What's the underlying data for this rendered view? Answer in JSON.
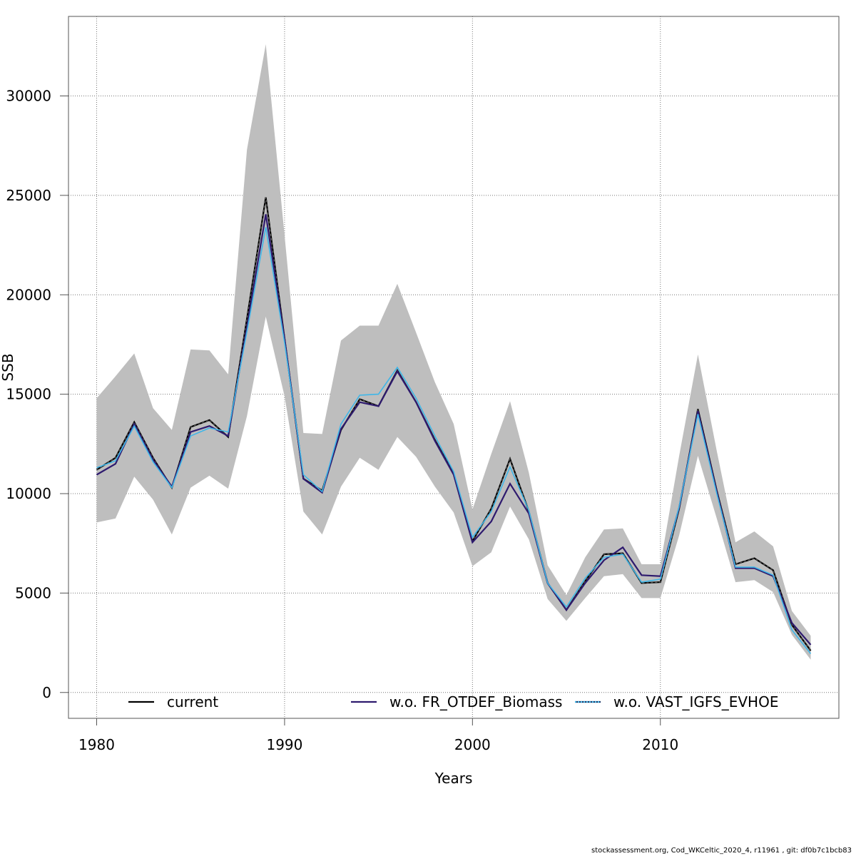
{
  "chart_data": {
    "type": "line",
    "xlabel": "Years",
    "ylabel": "SSB",
    "xlim": [
      1978.5,
      2019.5
    ],
    "ylim": [
      -1300,
      34000
    ],
    "xticks": [
      1980,
      1990,
      2000,
      2010
    ],
    "yticks": [
      0,
      5000,
      10000,
      15000,
      20000,
      25000,
      30000
    ],
    "grid": true,
    "legend_position": "bottom",
    "x": [
      1980,
      1981,
      1982,
      1983,
      1984,
      1985,
      1986,
      1987,
      1988,
      1989,
      1990,
      1991,
      1992,
      1993,
      1994,
      1995,
      1996,
      1997,
      1998,
      1999,
      2000,
      2001,
      2002,
      2003,
      2004,
      2005,
      2006,
      2007,
      2008,
      2009,
      2010,
      2011,
      2012,
      2013,
      2014,
      2015,
      2016,
      2017,
      2018
    ],
    "band": {
      "color": "#bebebe",
      "upper": [
        14800,
        15900,
        17050,
        14300,
        13200,
        17250,
        17200,
        16000,
        27300,
        32600,
        23000,
        13050,
        13000,
        17700,
        18450,
        18450,
        20550,
        18100,
        15600,
        13500,
        9200,
        12000,
        14650,
        11050,
        6400,
        4900,
        6800,
        8200,
        8250,
        6450,
        6450,
        11900,
        17000,
        12150,
        7550,
        8100,
        7350,
        4100,
        2850
      ],
      "lower": [
        8550,
        8750,
        10850,
        9700,
        7950,
        10300,
        10900,
        10250,
        13900,
        18900,
        14900,
        9100,
        7950,
        10350,
        11800,
        11200,
        12850,
        11850,
        10350,
        9050,
        6350,
        7050,
        9350,
        7700,
        4700,
        3600,
        4750,
        5850,
        5950,
        4750,
        4750,
        7900,
        11900,
        8750,
        5550,
        5650,
        5050,
        2900,
        1650
      ]
    },
    "series": [
      {
        "name": "current",
        "color": "#000000",
        "dash": "solid",
        "values": [
          11200,
          11800,
          13600,
          11800,
          10300,
          13350,
          13700,
          12850,
          18800,
          24900,
          17800,
          10750,
          10150,
          13200,
          14750,
          14400,
          16200,
          14600,
          12700,
          11000,
          7600,
          9250,
          11750,
          9100,
          5500,
          4150,
          5600,
          6950,
          7000,
          5500,
          5550,
          9250,
          14250,
          10150,
          6450,
          6750,
          6150,
          3400,
          2100
        ]
      },
      {
        "name": "w.o. FR_OTDEF_Biomass",
        "color": "#2e1a6e",
        "dash": "solid",
        "values": [
          10950,
          11500,
          13500,
          11700,
          10350,
          13100,
          13400,
          12900,
          18400,
          24050,
          17800,
          10750,
          10050,
          13250,
          14600,
          14400,
          16150,
          14600,
          12650,
          10950,
          7550,
          8600,
          10500,
          9000,
          5500,
          4150,
          5500,
          6650,
          7300,
          5900,
          5850,
          9300,
          14150,
          10100,
          6250,
          6250,
          5850,
          3500,
          2400
        ]
      },
      {
        "name": "w.o. VAST_IGFS_EVHOE",
        "color": "#3fb6e8",
        "dash": "dotted",
        "values": [
          11300,
          11650,
          13400,
          11600,
          10300,
          12900,
          13300,
          13100,
          18150,
          23400,
          17600,
          10950,
          10100,
          13500,
          14950,
          15000,
          16350,
          14800,
          12900,
          11100,
          7800,
          9100,
          11350,
          9150,
          5500,
          4300,
          5750,
          6800,
          6950,
          5550,
          5700,
          9350,
          14000,
          10000,
          6300,
          6300,
          5900,
          3150,
          1950
        ]
      }
    ]
  },
  "footer": "stockassessment.org, Cod_WKCeltic_2020_4, r11961 , git: df0b7c1bcb83"
}
